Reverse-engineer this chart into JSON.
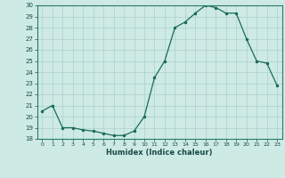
{
  "x": [
    0,
    1,
    2,
    3,
    4,
    5,
    6,
    7,
    8,
    9,
    10,
    11,
    12,
    13,
    14,
    15,
    16,
    17,
    18,
    19,
    20,
    21,
    22,
    23
  ],
  "y": [
    20.5,
    21.0,
    19.0,
    19.0,
    18.8,
    18.7,
    18.5,
    18.3,
    18.3,
    18.7,
    20.0,
    23.5,
    25.0,
    28.0,
    28.5,
    29.3,
    30.0,
    29.8,
    29.3,
    29.3,
    27.0,
    25.0,
    24.8,
    22.8
  ],
  "xlabel": "Humidex (Indice chaleur)",
  "ylim": [
    18,
    30
  ],
  "yticks": [
    18,
    19,
    20,
    21,
    22,
    23,
    24,
    25,
    26,
    27,
    28,
    29,
    30
  ],
  "xticks": [
    0,
    1,
    2,
    3,
    4,
    5,
    6,
    7,
    8,
    9,
    10,
    11,
    12,
    13,
    14,
    15,
    16,
    17,
    18,
    19,
    20,
    21,
    22,
    23
  ],
  "line_color": "#1a6b5a",
  "marker_color": "#1a6b5a",
  "bg_color": "#cdeae4",
  "grid_color": "#b0d0cc"
}
